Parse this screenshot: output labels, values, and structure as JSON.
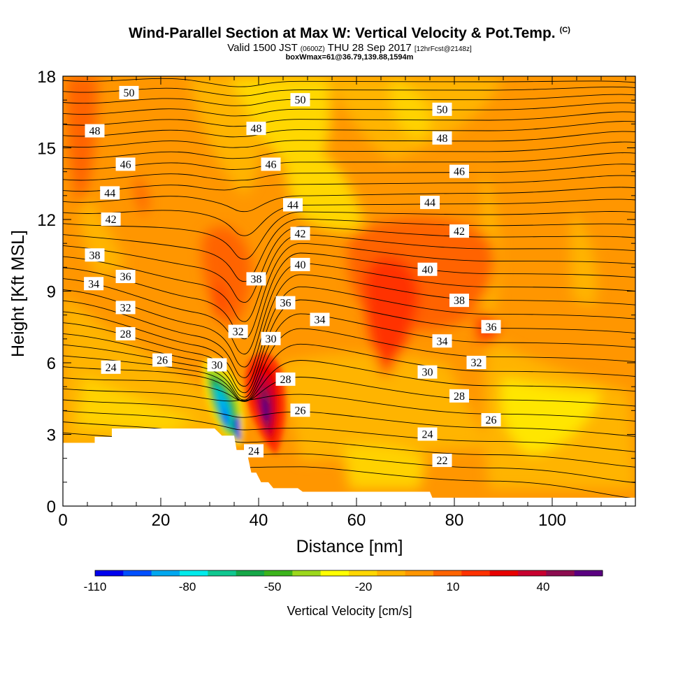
{
  "titles": {
    "main": "Wind-Parallel Section at Max W: Vertical Velocity & Pot.Temp.",
    "copyright": "(C)",
    "valid_prefix": "Valid 1500 JST",
    "valid_utc": "(0600Z)",
    "valid_date": "THU 28 Sep 2017",
    "forecast": "[12hrFcst@2148z]",
    "box_info": "boxWmax=61@36.79,139.88,1594m"
  },
  "chart_data": {
    "type": "heatmap",
    "xlabel": "Distance [nm]",
    "ylabel": "Height [Kft MSL]",
    "xlim": [
      0,
      117
    ],
    "ylim": [
      0,
      18
    ],
    "xticks": [
      0,
      20,
      40,
      60,
      80,
      100
    ],
    "yticks": [
      0,
      3,
      6,
      9,
      12,
      15,
      18
    ],
    "colorbar": {
      "title": "Vertical Velocity [cm/s]",
      "tick_labels": [
        "-110",
        "-80",
        "-50",
        "-20",
        "10",
        "40"
      ],
      "colors": [
        "#0000ee",
        "#0050ff",
        "#00a8f0",
        "#00ecec",
        "#10c890",
        "#16a848",
        "#3cb41c",
        "#9cd81c",
        "#ffff00",
        "#ffd700",
        "#ffb400",
        "#ff9600",
        "#ff6400",
        "#ff3200",
        "#e80000",
        "#c80030",
        "#8c0c50",
        "#5a0080"
      ]
    },
    "theta_contour_labels": [
      {
        "value": "50",
        "x": 13.5,
        "y": 17.3
      },
      {
        "value": "50",
        "x": 48.5,
        "y": 17.0
      },
      {
        "value": "50",
        "x": 77.5,
        "y": 16.6
      },
      {
        "value": "48",
        "x": 6.5,
        "y": 15.7
      },
      {
        "value": "48",
        "x": 39.5,
        "y": 15.8
      },
      {
        "value": "48",
        "x": 77.5,
        "y": 15.4
      },
      {
        "value": "46",
        "x": 12.8,
        "y": 14.3
      },
      {
        "value": "46",
        "x": 42.5,
        "y": 14.3
      },
      {
        "value": "46",
        "x": 81.0,
        "y": 14.0
      },
      {
        "value": "44",
        "x": 9.6,
        "y": 13.1
      },
      {
        "value": "44",
        "x": 47.0,
        "y": 12.6
      },
      {
        "value": "44",
        "x": 75.0,
        "y": 12.7
      },
      {
        "value": "42",
        "x": 9.8,
        "y": 12.0
      },
      {
        "value": "42",
        "x": 48.5,
        "y": 11.4
      },
      {
        "value": "42",
        "x": 81.0,
        "y": 11.5
      },
      {
        "value": "38",
        "x": 6.5,
        "y": 10.5
      },
      {
        "value": "38",
        "x": 39.5,
        "y": 9.5
      },
      {
        "value": "40",
        "x": 48.5,
        "y": 10.1
      },
      {
        "value": "40",
        "x": 74.5,
        "y": 9.9
      },
      {
        "value": "34",
        "x": 6.3,
        "y": 9.3
      },
      {
        "value": "36",
        "x": 12.8,
        "y": 9.6
      },
      {
        "value": "36",
        "x": 45.5,
        "y": 8.5
      },
      {
        "value": "38",
        "x": 81.0,
        "y": 8.6
      },
      {
        "value": "32",
        "x": 12.8,
        "y": 8.3
      },
      {
        "value": "34",
        "x": 52.5,
        "y": 7.8
      },
      {
        "value": "36",
        "x": 87.5,
        "y": 7.5
      },
      {
        "value": "28",
        "x": 12.8,
        "y": 7.2
      },
      {
        "value": "32",
        "x": 35.8,
        "y": 7.3
      },
      {
        "value": "30",
        "x": 42.5,
        "y": 7.0
      },
      {
        "value": "34",
        "x": 77.5,
        "y": 6.9
      },
      {
        "value": "26",
        "x": 20.3,
        "y": 6.1
      },
      {
        "value": "32",
        "x": 84.5,
        "y": 6.0
      },
      {
        "value": "24",
        "x": 9.8,
        "y": 5.8
      },
      {
        "value": "30",
        "x": 31.5,
        "y": 5.9
      },
      {
        "value": "30",
        "x": 74.5,
        "y": 5.6
      },
      {
        "value": "28",
        "x": 45.5,
        "y": 5.3
      },
      {
        "value": "28",
        "x": 81.0,
        "y": 4.6
      },
      {
        "value": "26",
        "x": 48.5,
        "y": 4.0
      },
      {
        "value": "26",
        "x": 87.5,
        "y": 3.6
      },
      {
        "value": "24",
        "x": 74.5,
        "y": 3.0
      },
      {
        "value": "24",
        "x": 39.0,
        "y": 2.3
      },
      {
        "value": "22",
        "x": 77.5,
        "y": 1.9
      }
    ],
    "terrain_top": [
      [
        0,
        2.65
      ],
      [
        3,
        2.65
      ],
      [
        6.5,
        2.65
      ],
      [
        6.5,
        2.9
      ],
      [
        10,
        2.9
      ],
      [
        10,
        3.25
      ],
      [
        31,
        3.25
      ],
      [
        32.5,
        2.95
      ],
      [
        35,
        2.95
      ],
      [
        35.5,
        2.35
      ],
      [
        37.5,
        2.35
      ],
      [
        38.5,
        1.4
      ],
      [
        39.5,
        1.4
      ],
      [
        40.5,
        1.0
      ],
      [
        42,
        1.0
      ],
      [
        43,
        0.75
      ],
      [
        48,
        0.75
      ],
      [
        49,
        0.6
      ],
      [
        75,
        0.6
      ],
      [
        75.5,
        0.35
      ],
      [
        117,
        0.35
      ]
    ]
  }
}
